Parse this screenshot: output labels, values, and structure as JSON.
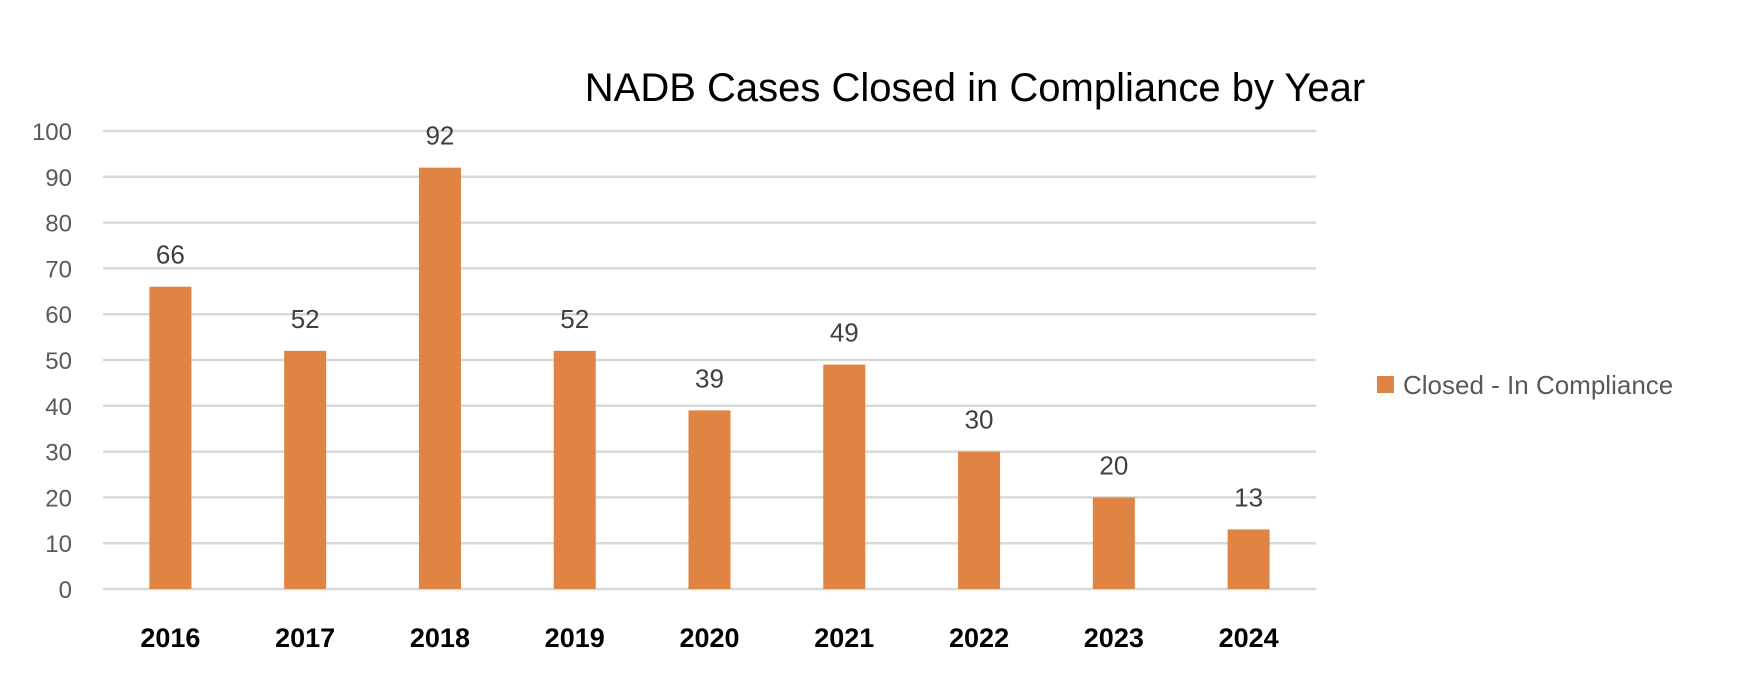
{
  "chart_data": {
    "type": "bar",
    "title": "NADB Cases Closed in Compliance by Year",
    "xlabel": "",
    "ylabel": "",
    "categories": [
      "2016",
      "2017",
      "2018",
      "2019",
      "2020",
      "2021",
      "2022",
      "2023",
      "2024"
    ],
    "series": [
      {
        "name": "Closed - In Compliance",
        "color": "#E08444",
        "values": [
          66,
          52,
          92,
          52,
          39,
          49,
          30,
          20,
          13
        ]
      }
    ],
    "ylim": [
      0,
      100
    ],
    "yticks": [
      0,
      10,
      20,
      30,
      40,
      50,
      60,
      70,
      80,
      90,
      100
    ],
    "grid": true,
    "data_labels": true,
    "legend": {
      "placement": "right",
      "entries": [
        "Closed - In Compliance"
      ]
    }
  }
}
